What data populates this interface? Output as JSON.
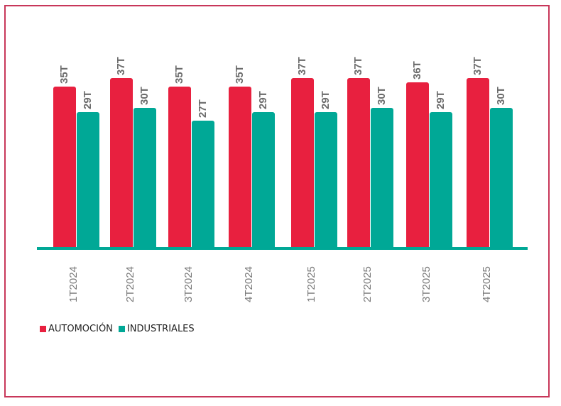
{
  "chart_data": {
    "type": "bar",
    "title": "",
    "xlabel": "",
    "ylabel": "",
    "grid": false,
    "legend_position": "bottom-left",
    "categories": [
      "1T2024",
      "2T2024",
      "3T2024",
      "4T2024",
      "1T2025",
      "2T2025",
      "3T2025",
      "4T2025"
    ],
    "series": [
      {
        "name": "AUTOMOCIÓN",
        "color": "#e8203f",
        "values": [
          35,
          37,
          35,
          35,
          37,
          37,
          36,
          37
        ],
        "labels": [
          "35T",
          "37T",
          "35T",
          "35T",
          "37T",
          "37T",
          "36T",
          "37T"
        ]
      },
      {
        "name": "INDUSTRIALES",
        "color": "#00a896",
        "values": [
          29,
          30,
          27,
          29,
          29,
          30,
          29,
          30
        ],
        "labels": [
          "29T",
          "30T",
          "27T",
          "29T",
          "29T",
          "30T",
          "29T",
          "30T"
        ]
      }
    ]
  },
  "legend": {
    "items": [
      {
        "label": "AUTOMOCIÓN",
        "color": "#e8203f"
      },
      {
        "label": "INDUSTRIALES",
        "color": "#00a896"
      }
    ]
  }
}
